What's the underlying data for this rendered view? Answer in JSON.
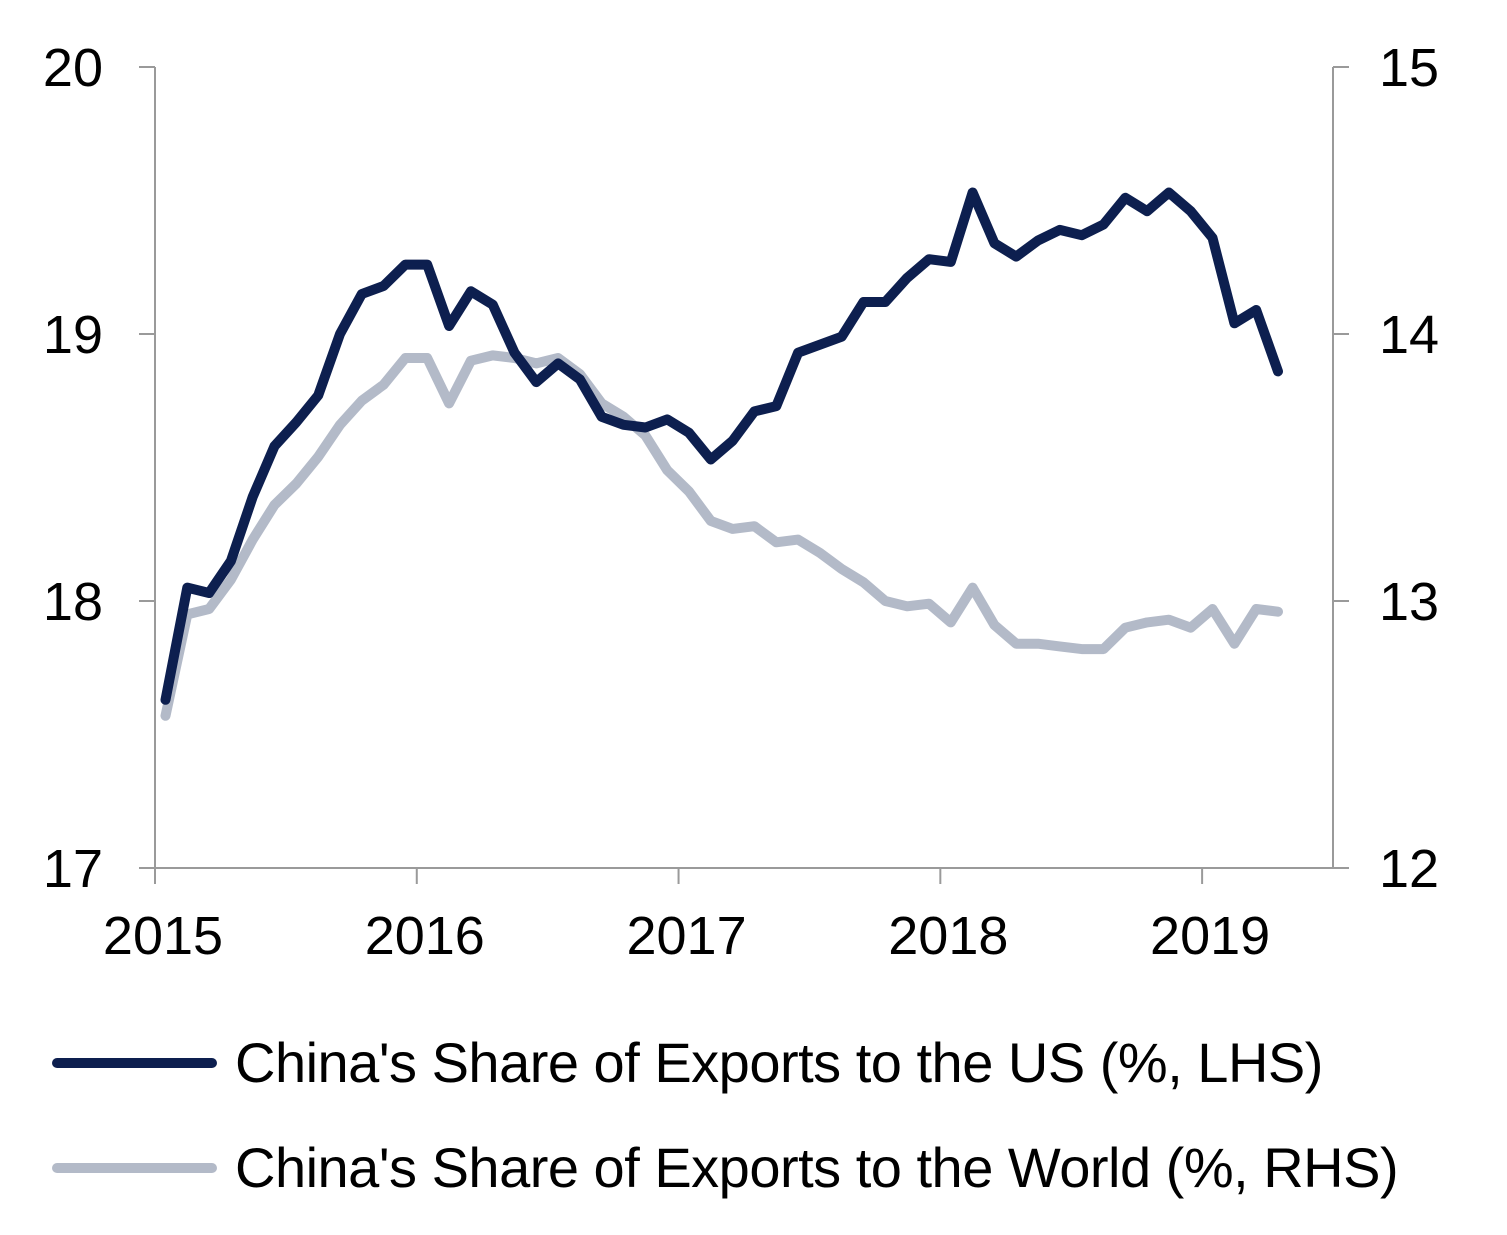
{
  "chart_data": {
    "type": "line",
    "title": "",
    "x_start": 2015.0,
    "x_step": 0.08333,
    "x_range": [
      2015.0,
      2019.5
    ],
    "x_ticks": [
      {
        "value": 2015.0,
        "label": "2015"
      },
      {
        "value": 2016.0,
        "label": "2016"
      },
      {
        "value": 2017.0,
        "label": "2017"
      },
      {
        "value": 2018.0,
        "label": "2018"
      },
      {
        "value": 2019.0,
        "label": "2019"
      }
    ],
    "y_left": {
      "range": [
        17,
        20
      ],
      "ticks": [
        "17",
        "18",
        "19",
        "20"
      ]
    },
    "y_right": {
      "range": [
        12,
        15
      ],
      "ticks": [
        "12",
        "13",
        "14",
        "15"
      ]
    },
    "grid": false,
    "legend_position": "bottom",
    "series": [
      {
        "name": "China's Share of Exports to the US (%, LHS)",
        "axis": "left",
        "color": "#0d1f4f",
        "values": [
          17.63,
          18.05,
          18.03,
          18.15,
          18.39,
          18.58,
          18.67,
          18.77,
          19.0,
          19.15,
          19.18,
          19.26,
          19.26,
          19.03,
          19.16,
          19.11,
          18.93,
          18.82,
          18.89,
          18.83,
          18.69,
          18.66,
          18.65,
          18.68,
          18.63,
          18.53,
          18.6,
          18.71,
          18.73,
          18.93,
          18.96,
          18.99,
          19.12,
          19.12,
          19.21,
          19.28,
          19.27,
          19.53,
          19.34,
          19.29,
          19.35,
          19.39,
          19.37,
          19.41,
          19.51,
          19.46,
          19.53,
          19.46,
          19.36,
          19.04,
          19.09,
          18.86
        ]
      },
      {
        "name": "China's Share of Exports to the World (%, RHS)",
        "axis": "right",
        "color": "#b3bac8",
        "values": [
          12.57,
          12.95,
          12.97,
          13.08,
          13.23,
          13.36,
          13.44,
          13.54,
          13.66,
          13.75,
          13.81,
          13.91,
          13.91,
          13.74,
          13.9,
          13.92,
          13.91,
          13.89,
          13.91,
          13.85,
          13.74,
          13.69,
          13.62,
          13.49,
          13.41,
          13.3,
          13.27,
          13.28,
          13.22,
          13.23,
          13.18,
          13.12,
          13.07,
          13.0,
          12.98,
          12.99,
          12.92,
          13.05,
          12.91,
          12.84,
          12.84,
          12.83,
          12.82,
          12.82,
          12.9,
          12.92,
          12.93,
          12.9,
          12.97,
          12.84,
          12.97,
          12.96
        ]
      }
    ]
  }
}
